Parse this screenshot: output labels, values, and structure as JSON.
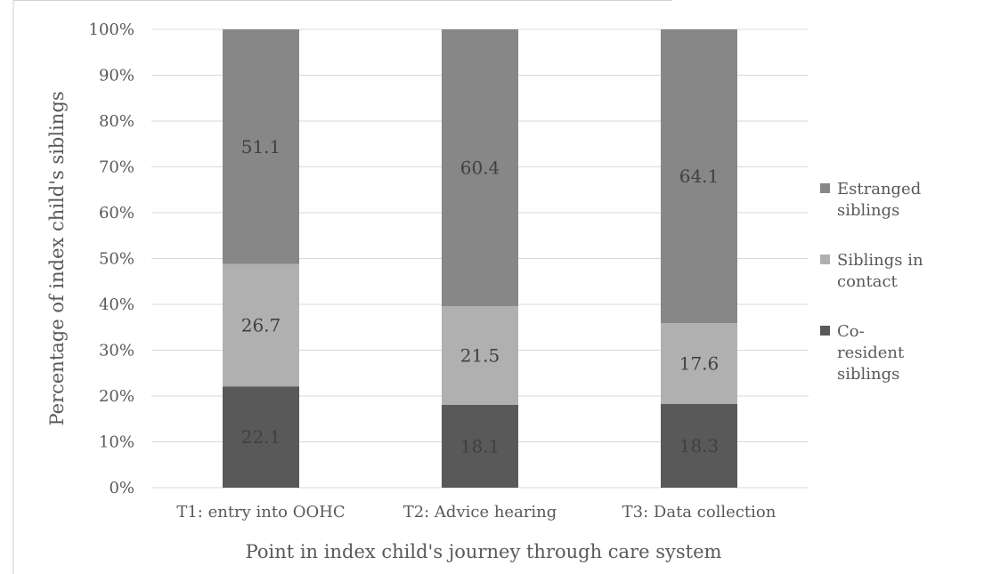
{
  "chart_data": {
    "type": "bar",
    "stacked": true,
    "percent_axis": true,
    "categories": [
      "T1: entry into OOHC",
      "T2: Advice hearing",
      "T3: Data collection"
    ],
    "series": [
      {
        "name": "Co-resident siblings",
        "values": [
          22.1,
          18.1,
          18.3
        ],
        "color": "#595959"
      },
      {
        "name": "Siblings in contact",
        "values": [
          26.7,
          21.5,
          17.6
        ],
        "color": "#b0b0b0"
      },
      {
        "name": "Estranged siblings",
        "values": [
          51.1,
          60.4,
          64.1
        ],
        "color": "#878787"
      }
    ],
    "legend_order": [
      "Estranged siblings",
      "Siblings in contact",
      "Co-resident siblings"
    ],
    "legend_lines": {
      "Estranged siblings": [
        "Estranged",
        "siblings"
      ],
      "Siblings in contact": [
        "Siblings in",
        "contact"
      ],
      "Co-resident siblings": [
        "Co-",
        "resident",
        "siblings"
      ]
    },
    "xlabel": "Point in index child's journey through care system",
    "ylabel": "Percentage of index child's siblings",
    "ylim": [
      0,
      100
    ],
    "yticks": [
      "0%",
      "10%",
      "20%",
      "30%",
      "40%",
      "50%",
      "60%",
      "70%",
      "80%",
      "90%",
      "100%"
    ],
    "grid": true,
    "legend_position": "right"
  }
}
